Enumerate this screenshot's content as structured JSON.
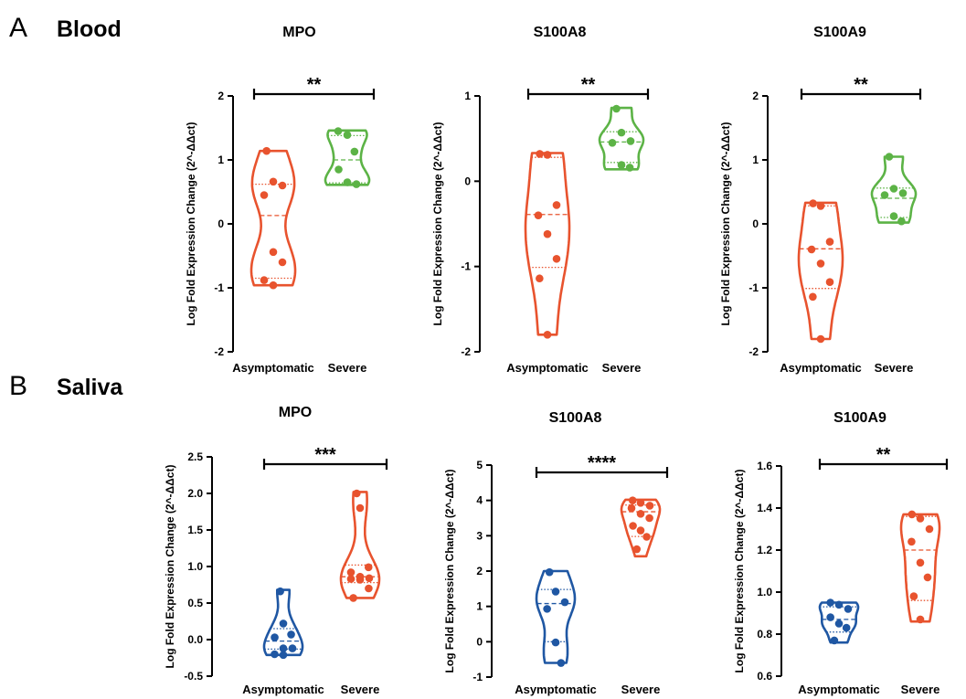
{
  "sections": [
    {
      "letter": "A",
      "title": "Blood"
    },
    {
      "letter": "B",
      "title": "Saliva"
    }
  ],
  "colors": {
    "red": "#e8532e",
    "green": "#5cb346",
    "blue": "#1f57a3"
  },
  "chart_data": [
    {
      "type": "violin",
      "section": "Blood",
      "title": "MPO",
      "ylabel": "Log Fold Expression Change (2^-ΔΔct)",
      "ylim": [
        -2,
        2
      ],
      "yticks": [
        -2,
        -1,
        0,
        1,
        2
      ],
      "ytick_labels": [
        "-2",
        "-1",
        "0",
        "1",
        "2"
      ],
      "categories": [
        "Asymptomatic",
        "Severe"
      ],
      "significance": "**",
      "groups": [
        {
          "category": "Asymptomatic",
          "color": "red",
          "points": [
            1.14,
            0.66,
            0.6,
            0.45,
            -0.44,
            -0.6,
            -0.88,
            -0.96
          ],
          "min": -0.96,
          "max": 1.14,
          "q1": -0.85,
          "median": 0.13,
          "q3": 0.62
        },
        {
          "category": "Severe",
          "color": "green",
          "points": [
            1.45,
            1.39,
            1.13,
            0.85,
            0.65,
            0.62
          ],
          "min": 0.61,
          "max": 1.46,
          "q1": 0.64,
          "median": 1.0,
          "q3": 1.38
        }
      ]
    },
    {
      "type": "violin",
      "section": "Blood",
      "title": "S100A8",
      "ylabel": "Log Fold Expression Change (2^-ΔΔct)",
      "ylim": [
        -2,
        1
      ],
      "yticks": [
        -2,
        -1,
        0,
        1
      ],
      "ytick_labels": [
        "-2",
        "-1",
        "0",
        "1"
      ],
      "categories": [
        "Asymptomatic",
        "Severe"
      ],
      "significance": "**",
      "groups": [
        {
          "category": "Asymptomatic",
          "color": "red",
          "points": [
            0.32,
            0.31,
            -0.28,
            -0.4,
            -0.62,
            -0.91,
            -1.14,
            -1.8
          ],
          "min": -1.8,
          "max": 0.33,
          "q1": -1.01,
          "median": -0.39,
          "q3": 0.28
        },
        {
          "category": "Severe",
          "color": "green",
          "points": [
            0.85,
            0.57,
            0.47,
            0.45,
            0.19,
            0.16
          ],
          "min": 0.14,
          "max": 0.86,
          "q1": 0.22,
          "median": 0.46,
          "q3": 0.58
        }
      ]
    },
    {
      "type": "violin",
      "section": "Blood",
      "title": "S100A9",
      "ylabel": "Log Fold Expression Change (2^-ΔΔct)",
      "ylim": [
        -2,
        2
      ],
      "yticks": [
        -2,
        -1,
        0,
        1,
        2
      ],
      "ytick_labels": [
        "-2",
        "-1",
        "0",
        "1",
        "2"
      ],
      "categories": [
        "Asymptomatic",
        "Severe"
      ],
      "significance": "**",
      "groups": [
        {
          "category": "Asymptomatic",
          "color": "red",
          "points": [
            0.32,
            0.28,
            -0.28,
            -0.4,
            -0.62,
            -0.91,
            -1.14,
            -1.8
          ],
          "min": -1.8,
          "max": 0.33,
          "q1": -1.01,
          "median": -0.39,
          "q3": 0.28
        },
        {
          "category": "Severe",
          "color": "green",
          "points": [
            1.05,
            0.55,
            0.48,
            0.45,
            0.12,
            0.04
          ],
          "min": 0.02,
          "max": 1.05,
          "q1": 0.1,
          "median": 0.4,
          "q3": 0.56
        }
      ]
    },
    {
      "type": "violin",
      "section": "Saliva",
      "title": "MPO",
      "ylabel": "Log Fold Expression Change (2^-ΔΔct)",
      "ylim": [
        -0.5,
        2.5
      ],
      "yticks": [
        -0.5,
        0,
        0.5,
        1,
        1.5,
        2,
        2.5
      ],
      "ytick_labels": [
        "-0.5",
        "0.0",
        "0.5",
        "1.0",
        "1.5",
        "2.0",
        "2.5"
      ],
      "categories": [
        "Asymptomatic",
        "Severe"
      ],
      "significance": "***",
      "groups": [
        {
          "category": "Asymptomatic",
          "color": "blue",
          "points": [
            0.66,
            0.22,
            0.07,
            0.03,
            -0.12,
            -0.12,
            -0.2,
            -0.21
          ],
          "min": -0.21,
          "max": 0.68,
          "q1": -0.13,
          "median": -0.02,
          "q3": 0.15
        },
        {
          "category": "Severe",
          "color": "red",
          "points": [
            2.0,
            1.8,
            0.99,
            0.92,
            0.86,
            0.84,
            0.83,
            0.82,
            0.7,
            0.57
          ],
          "min": 0.57,
          "max": 2.02,
          "q1": 0.78,
          "median": 0.86,
          "q3": 1.02
        }
      ]
    },
    {
      "type": "violin",
      "section": "Saliva",
      "title": "S100A8",
      "ylabel": "Log Fold Expression Change (2^-ΔΔct)",
      "ylim": [
        -1,
        5
      ],
      "yticks": [
        -1,
        0,
        1,
        2,
        3,
        4,
        5
      ],
      "ytick_labels": [
        "-1",
        "0",
        "1",
        "2",
        "3",
        "4",
        "5"
      ],
      "categories": [
        "Asymptomatic",
        "Severe"
      ],
      "significance": "****",
      "groups": [
        {
          "category": "Asymptomatic",
          "color": "blue",
          "points": [
            1.97,
            1.42,
            1.12,
            0.93,
            -0.02,
            -0.6
          ],
          "min": -0.6,
          "max": 2.0,
          "q1": 0.0,
          "median": 1.08,
          "q3": 1.48
        },
        {
          "category": "Severe",
          "color": "red",
          "points": [
            4.0,
            3.93,
            3.85,
            3.78,
            3.62,
            3.5,
            3.28,
            3.15,
            2.97,
            2.62
          ],
          "min": 2.42,
          "max": 4.02,
          "q1": 2.98,
          "median": 3.68,
          "q3": 3.87
        }
      ]
    },
    {
      "type": "violin",
      "section": "Saliva",
      "title": "S100A9",
      "ylabel": "Log Fold Expression Change (2^-ΔΔct)",
      "ylim": [
        0.6,
        1.6
      ],
      "yticks": [
        0.6,
        0.8,
        1.0,
        1.2,
        1.4,
        1.6
      ],
      "ytick_labels": [
        "0.6",
        "0.8",
        "1.0",
        "1.2",
        "1.4",
        "1.6"
      ],
      "categories": [
        "Asymptomatic",
        "Severe"
      ],
      "significance": "**",
      "groups": [
        {
          "category": "Asymptomatic",
          "color": "blue",
          "points": [
            0.95,
            0.94,
            0.92,
            0.88,
            0.85,
            0.83,
            0.77
          ],
          "min": 0.76,
          "max": 0.95,
          "q1": 0.81,
          "median": 0.87,
          "q3": 0.93
        },
        {
          "category": "Severe",
          "color": "red",
          "points": [
            1.37,
            1.35,
            1.3,
            1.24,
            1.14,
            1.07,
            0.98,
            0.87
          ],
          "min": 0.86,
          "max": 1.37,
          "q1": 0.96,
          "median": 1.2,
          "q3": 1.36
        }
      ]
    }
  ]
}
